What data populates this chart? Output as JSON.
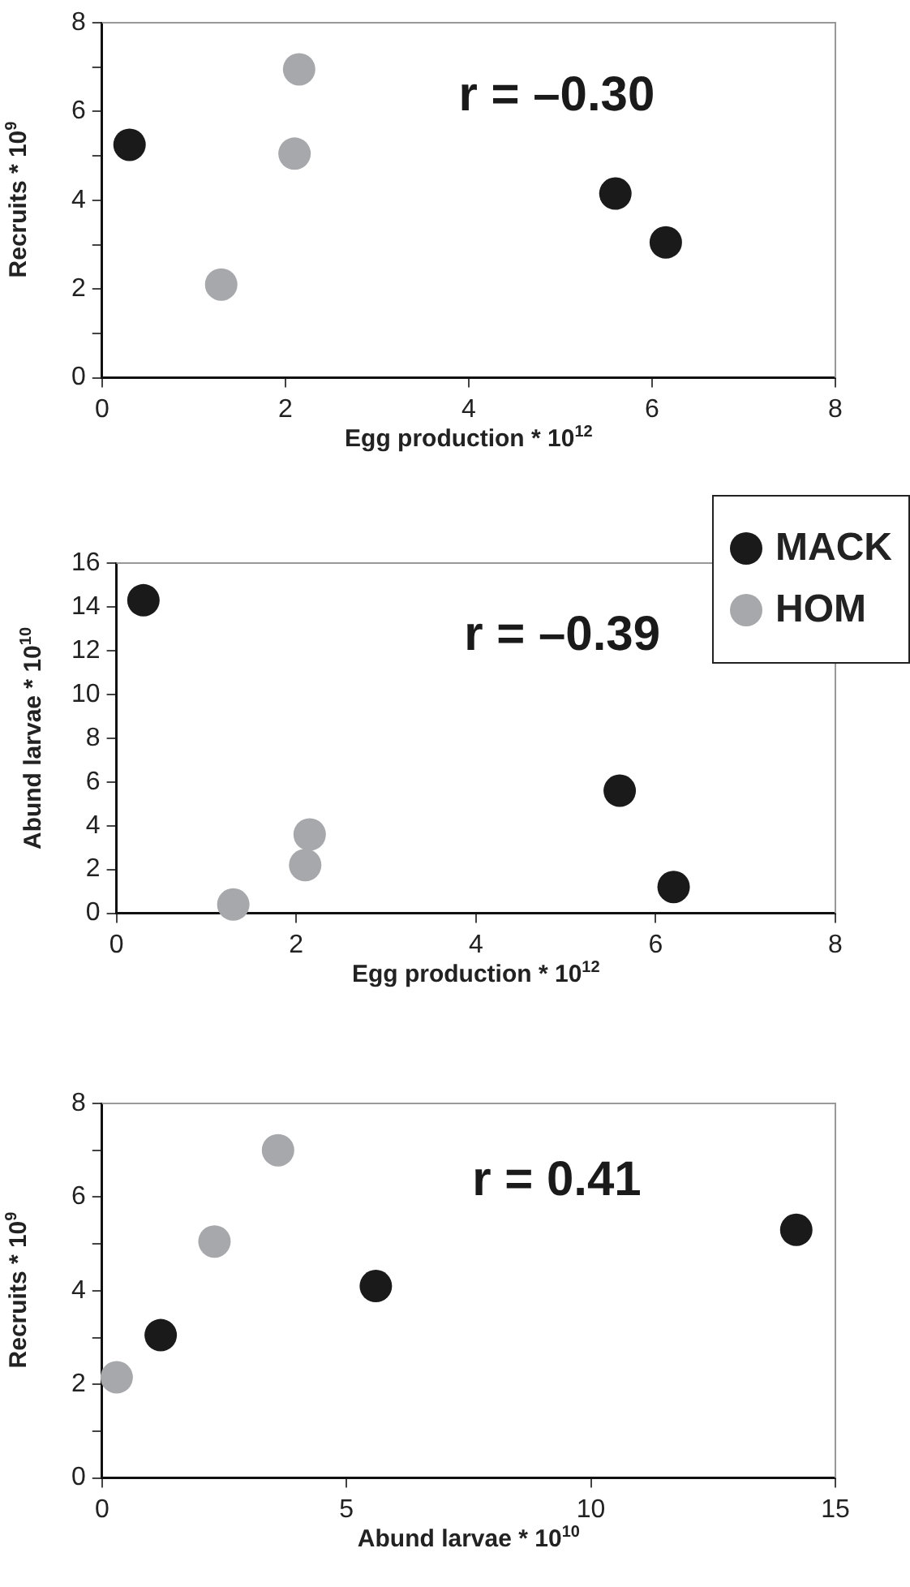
{
  "chart_data": [
    {
      "type": "scatter",
      "xlabel": "Egg production * 10$^{12}$",
      "ylabel": "Recruits * 10$^{9}$",
      "xlim": [
        0,
        8
      ],
      "xticks": [
        0,
        2,
        4,
        6,
        8
      ],
      "ylim": [
        0,
        8
      ],
      "yticks": [
        0,
        {
          "value": 1,
          "label": null
        },
        2,
        {
          "value": 3,
          "label": null
        },
        4,
        {
          "value": 5,
          "label": null
        },
        6,
        {
          "value": 7,
          "label": null
        },
        8
      ],
      "grid": false,
      "legend": false,
      "marker": "circle",
      "annotations": [
        "r = –0.30"
      ],
      "series": [
        {
          "color": "#1a1a1a",
          "x": [
            0.3,
            5.6,
            6.15
          ],
          "values": [
            5.25,
            4.15,
            3.05
          ]
        },
        {
          "color": "#a6a8ab",
          "x": [
            1.3,
            2.1,
            2.15
          ],
          "values": [
            2.1,
            5.05,
            6.95
          ]
        }
      ]
    },
    {
      "type": "scatter",
      "xlabel": "Egg production * 10$^{12}$",
      "ylabel": "Abund larvae * 10$^{10}$",
      "xlim": [
        0,
        8
      ],
      "xticks": [
        0,
        2,
        4,
        6,
        8
      ],
      "ylim": [
        0,
        16
      ],
      "yticks": [
        0,
        2,
        4,
        6,
        8,
        10,
        12,
        14,
        16
      ],
      "grid": false,
      "legend": "top right",
      "marker": "circle",
      "annotations": [
        "r = –0.39"
      ],
      "series": [
        {
          "name": "MACK",
          "color": "#1a1a1a",
          "x": [
            0.3,
            5.6,
            6.2
          ],
          "values": [
            14.3,
            5.6,
            1.2
          ]
        },
        {
          "name": "HOM",
          "color": "#a6a8ab",
          "x": [
            1.3,
            2.1,
            2.15
          ],
          "values": [
            0.4,
            2.2,
            3.6
          ]
        }
      ]
    },
    {
      "type": "scatter",
      "xlabel": "Abund larvae * 10$^{10}$",
      "ylabel": "Recruits * 10$^{9}$",
      "xlim": [
        0,
        15
      ],
      "xticks": [
        0,
        5,
        10,
        15
      ],
      "ylim": [
        0,
        8
      ],
      "yticks": [
        0,
        {
          "value": 1,
          "label": null
        },
        2,
        {
          "value": 3,
          "label": null
        },
        4,
        {
          "value": 5,
          "label": null
        },
        6,
        {
          "value": 7,
          "label": null
        },
        8
      ],
      "grid": false,
      "legend": false,
      "marker": "circle",
      "annotations": [
        "r = 0.41"
      ],
      "series": [
        {
          "color": "#1a1a1a",
          "x": [
            1.2,
            5.6,
            14.2
          ],
          "values": [
            3.05,
            4.1,
            5.3
          ]
        },
        {
          "color": "#a6a8ab",
          "x": [
            0.3,
            2.3,
            3.6
          ],
          "values": [
            2.15,
            5.05,
            7.0
          ]
        }
      ]
    }
  ]
}
